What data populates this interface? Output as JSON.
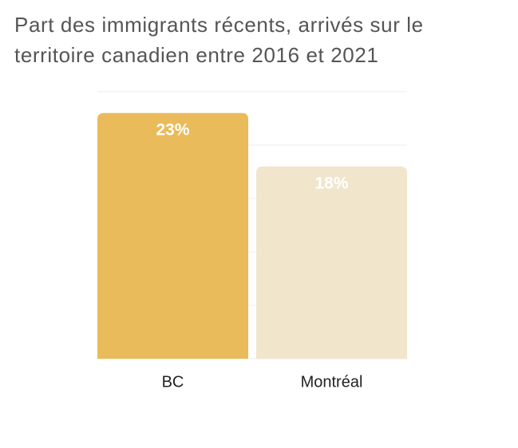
{
  "chart_data": {
    "type": "bar",
    "title": "Part des immigrants récents, arrivés sur le territoire canadien entre 2016 et 2021",
    "categories": [
      "BC",
      "Montréal"
    ],
    "values": [
      23,
      18
    ],
    "value_labels": [
      "23%",
      "18%"
    ],
    "colors": [
      "#e9bb5a",
      "#f1e6cc"
    ],
    "ylim": [
      0,
      25
    ],
    "yticks": [
      0,
      5,
      10,
      15,
      20,
      25
    ],
    "grid": true
  }
}
